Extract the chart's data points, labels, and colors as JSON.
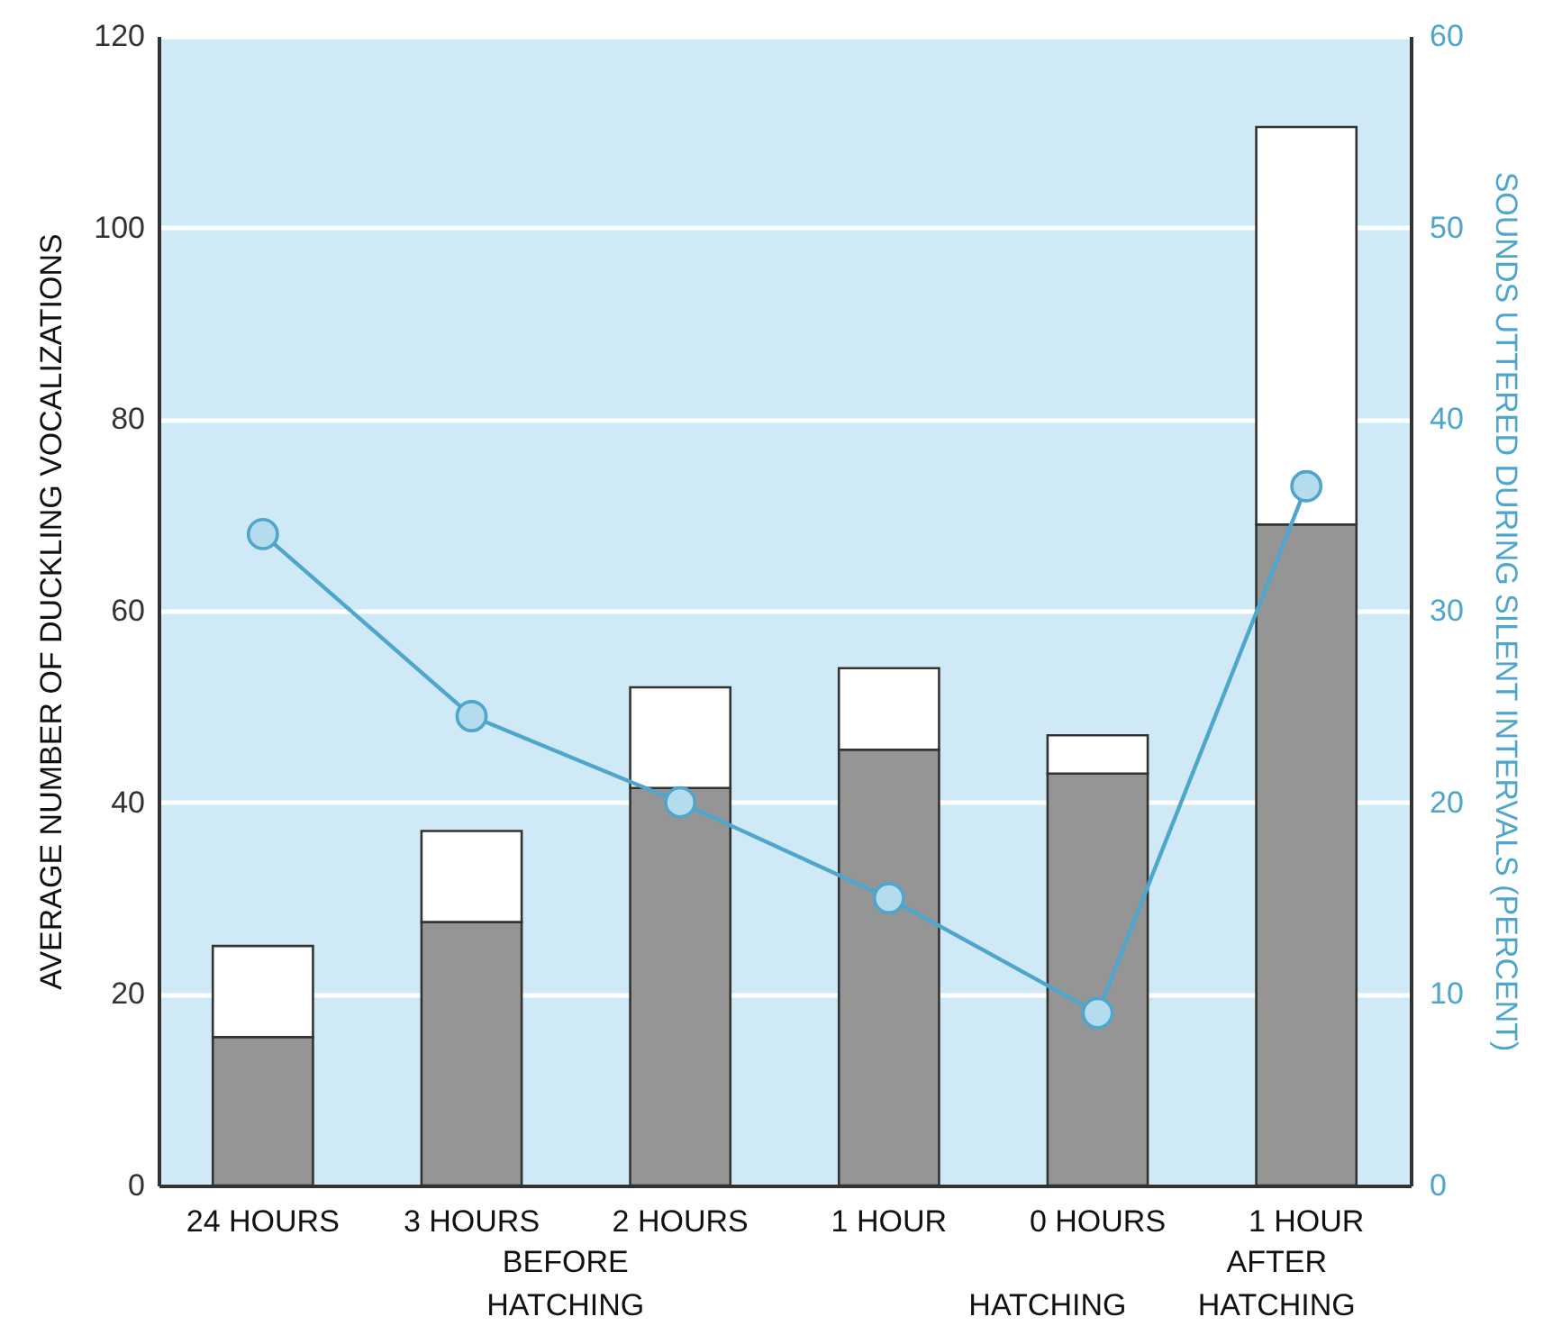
{
  "chart_data": {
    "type": "bar",
    "stacked": true,
    "ylabel": "AVERAGE NUMBER OF DUCKLING VOCALIZATIONS",
    "y2label": "SOUNDS UTTERED DURING SILENT INTERVALS (PERCENT)",
    "categories": [
      "24 HOURS",
      "3 HOURS",
      "2 HOURS",
      "1 HOUR",
      "0 HOURS",
      "1 HOUR"
    ],
    "series": [
      {
        "color": "#959595",
        "values": [
          15.5,
          27.5,
          41.5,
          45.5,
          43,
          69
        ]
      },
      {
        "color": "#ffffff",
        "values": [
          9.5,
          9.5,
          10.5,
          8.5,
          4,
          41.5
        ]
      },
      {
        "type": "line",
        "axis": "y2",
        "color": "#4ea6cc",
        "values": [
          34,
          24.5,
          20,
          15,
          9,
          36.5
        ]
      }
    ],
    "annotations": [
      "BEFORE HATCHING",
      "HATCHING",
      "AFTER HATCHING"
    ],
    "ylim": [
      0,
      120
    ],
    "yticks": [
      0,
      20,
      40,
      60,
      80,
      100,
      120
    ],
    "y2lim": [
      0,
      60
    ],
    "y2ticks": [
      0,
      10,
      20,
      30,
      40,
      50,
      60
    ],
    "grid": "y",
    "marker": "circle"
  }
}
